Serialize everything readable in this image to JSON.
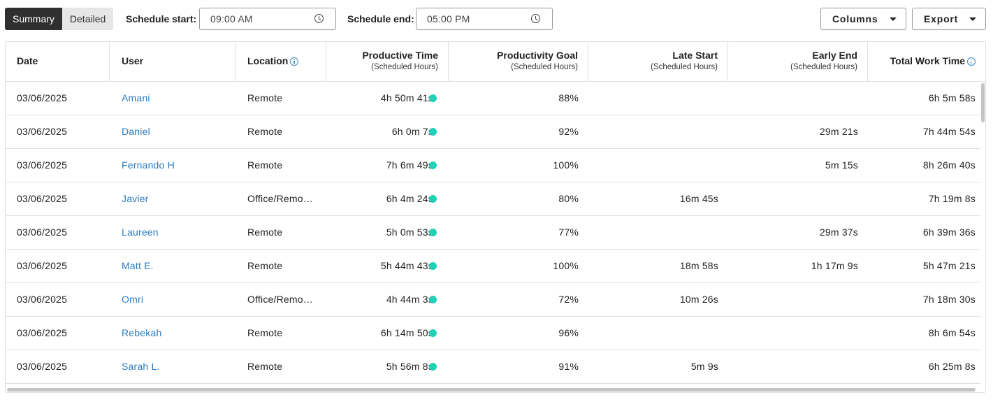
{
  "toolbar": {
    "view_modes": [
      {
        "label": "Summary",
        "active": true
      },
      {
        "label": "Detailed",
        "active": false
      }
    ],
    "schedule_start_label": "Schedule start:",
    "schedule_start_value": "09:00 AM",
    "schedule_end_label": "Schedule end:",
    "schedule_end_value": "05:00 PM",
    "columns_label": "Columns",
    "export_label": "Export"
  },
  "table": {
    "headers": [
      {
        "title": "Date",
        "sub": ""
      },
      {
        "title": "User",
        "sub": ""
      },
      {
        "title": "Location",
        "sub": "",
        "info": true
      },
      {
        "title": "Productive Time",
        "sub": "(Scheduled Hours)"
      },
      {
        "title": "Productivity Goal",
        "sub": "(Scheduled Hours)"
      },
      {
        "title": "Late Start",
        "sub": "(Scheduled Hours)"
      },
      {
        "title": "Early End",
        "sub": "(Scheduled Hours)"
      },
      {
        "title": "Total Work Time",
        "sub": "",
        "info": true
      }
    ],
    "rows": [
      {
        "date": "03/06/2025",
        "user": "Amani",
        "location": "Remote",
        "productive_time": "4h 50m 41s",
        "productivity_goal": "88%",
        "late_start": "",
        "early_end": "",
        "total_work_time": "6h 5m 58s"
      },
      {
        "date": "03/06/2025",
        "user": "Daniel",
        "location": "Remote",
        "productive_time": "6h 0m 7s",
        "productivity_goal": "92%",
        "late_start": "",
        "early_end": "29m 21s",
        "total_work_time": "7h 44m 54s"
      },
      {
        "date": "03/06/2025",
        "user": "Fernando H",
        "location": "Remote",
        "productive_time": "7h 6m 49s",
        "productivity_goal": "100%",
        "late_start": "",
        "early_end": "5m 15s",
        "total_work_time": "8h 26m 40s"
      },
      {
        "date": "03/06/2025",
        "user": "Javier",
        "location": "Office/Remo…",
        "productive_time": "6h 4m 24s",
        "productivity_goal": "80%",
        "late_start": "16m 45s",
        "early_end": "",
        "total_work_time": "7h 19m 8s"
      },
      {
        "date": "03/06/2025",
        "user": "Laureen",
        "location": "Remote",
        "productive_time": "5h 0m 53s",
        "productivity_goal": "77%",
        "late_start": "",
        "early_end": "29m 37s",
        "total_work_time": "6h 39m 36s"
      },
      {
        "date": "03/06/2025",
        "user": "Matt E.",
        "location": "Remote",
        "productive_time": "5h 44m 43s",
        "productivity_goal": "100%",
        "late_start": "18m 58s",
        "early_end": "1h 17m 9s",
        "total_work_time": "5h 47m 21s"
      },
      {
        "date": "03/06/2025",
        "user": "Omri",
        "location": "Office/Remo…",
        "productive_time": "4h 44m 3s",
        "productivity_goal": "72%",
        "late_start": "10m 26s",
        "early_end": "",
        "total_work_time": "7h 18m 30s"
      },
      {
        "date": "03/06/2025",
        "user": "Rebekah",
        "location": "Remote",
        "productive_time": "6h 14m 50s",
        "productivity_goal": "96%",
        "late_start": "",
        "early_end": "",
        "total_work_time": "8h 6m 54s"
      },
      {
        "date": "03/06/2025",
        "user": "Sarah L.",
        "location": "Remote",
        "productive_time": "5h 56m 8s",
        "productivity_goal": "91%",
        "late_start": "5m 9s",
        "early_end": "",
        "total_work_time": "6h 25m 8s"
      }
    ]
  },
  "colors": {
    "accent": "#2a7cc0",
    "status_dot": "#1fd1b5",
    "active_toggle": "#2f2f2f"
  },
  "icons": {
    "time_field": "clock-icon",
    "dropdown": "caret-down-icon",
    "header_info": "info-icon",
    "status": "status-dot"
  }
}
